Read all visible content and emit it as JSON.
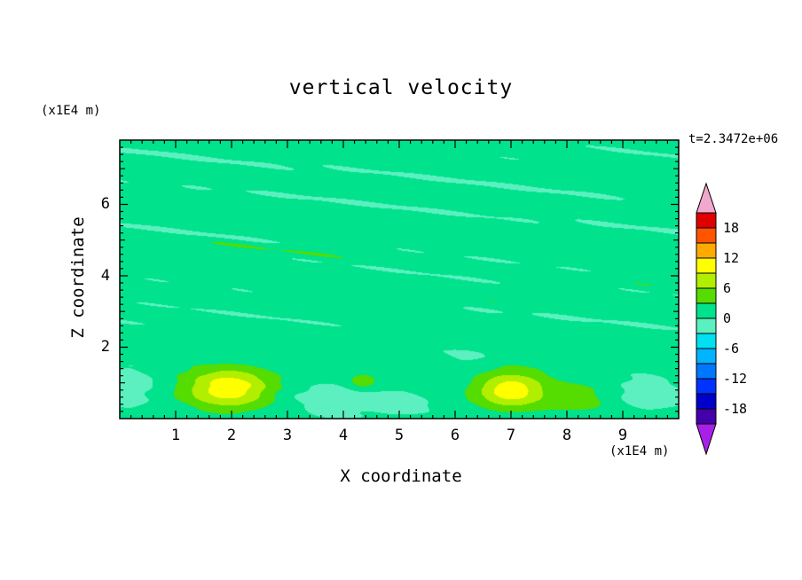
{
  "window": {
    "background": "#ffffff"
  },
  "chart_data": {
    "type": "heatmap",
    "title": "vertical velocity",
    "time_annotation": "t=2.3472e+06",
    "xlabel": "X coordinate",
    "ylabel": "Z coordinate",
    "x_units": "(x1E4 m)",
    "y_units": "(x1E4 m)",
    "xlim": [
      0,
      10
    ],
    "ylim": [
      0,
      7.8
    ],
    "grid": false,
    "legend_position": "right-colorbar",
    "xticks": {
      "values": [
        1,
        2,
        3,
        4,
        5,
        6,
        7,
        8,
        9
      ],
      "labels": [
        "1",
        "2",
        "3",
        "4",
        "5",
        "6",
        "7",
        "8",
        "9"
      ]
    },
    "yticks": {
      "values": [
        2,
        4,
        6
      ],
      "labels": [
        "2",
        "4",
        "6"
      ]
    },
    "contour_levels": [
      -21,
      -18,
      -15,
      -12,
      -9,
      -6,
      -3,
      0,
      3,
      6,
      9,
      12,
      15,
      18,
      21
    ],
    "colorbar": {
      "labels": [
        "18",
        "12",
        "6",
        "0",
        "-6",
        "-12",
        "-18"
      ],
      "values": [
        18,
        12,
        6,
        0,
        -6,
        -12,
        -18
      ],
      "colors": [
        "#4400AA",
        "#0000CC",
        "#0033FF",
        "#0077FF",
        "#00B4FF",
        "#00E0F0",
        "#5CF0C0",
        "#00E28C",
        "#55DC00",
        "#B2EE00",
        "#FFFF00",
        "#FFAA00",
        "#FF5500",
        "#E00000"
      ],
      "under_color": "#A820E8",
      "over_color": "#F2A8CC"
    },
    "field": {
      "base": 1.15,
      "streaks": {
        "amp_low": 0.55,
        "amp_high": 2.0,
        "ramp": [
          1.6,
          3.0
        ],
        "norm": 1.75,
        "waves": [
          [
            0.5,
            1.3,
            9.0,
            0.4
          ],
          [
            0.42,
            2.2,
            14.5,
            2.1
          ],
          [
            0.4,
            0.9,
            6.8,
            4.2
          ],
          [
            0.32,
            3.5,
            18.0,
            1.1
          ],
          [
            0.28,
            1.6,
            11.5,
            5.0
          ],
          [
            0.22,
            4.2,
            21.0,
            3.3
          ],
          [
            0.18,
            5.5,
            8.2,
            0.8
          ]
        ]
      },
      "blobs": [
        [
          1.95,
          0.85,
          0.78,
          0.55,
          10.2
        ],
        [
          7.0,
          0.8,
          0.62,
          0.5,
          10.0
        ],
        [
          8.35,
          0.6,
          0.7,
          0.5,
          3.4
        ],
        [
          4.35,
          1.05,
          0.3,
          0.25,
          4.2
        ],
        [
          3.85,
          0.55,
          0.9,
          0.55,
          -2.8
        ],
        [
          9.3,
          0.7,
          0.8,
          0.6,
          -2.8
        ],
        [
          5.05,
          0.4,
          0.55,
          0.45,
          -2.0
        ],
        [
          0.15,
          0.9,
          0.55,
          0.7,
          -2.6
        ],
        [
          6.2,
          1.7,
          0.45,
          0.35,
          -1.6
        ]
      ]
    }
  }
}
